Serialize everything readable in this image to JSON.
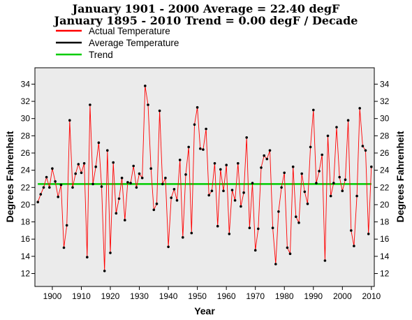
{
  "chart_data": {
    "type": "line",
    "title": "January 1901 - 2000 Average = 22.40 degF",
    "subtitle": "January 1895 - 2010 Trend = 0.00 degF / Decade",
    "xlabel": "Year",
    "ylabel": "Degrees Fahrenheit",
    "xlim": [
      1894,
      2011
    ],
    "ylim": [
      10.5,
      35.9
    ],
    "x_ticks": [
      1900,
      1910,
      1920,
      1930,
      1940,
      1950,
      1960,
      1970,
      1980,
      1990,
      2000,
      2010
    ],
    "y_ticks": [
      12,
      14,
      16,
      18,
      20,
      22,
      24,
      26,
      28,
      30,
      32,
      34
    ],
    "grid": false,
    "background": "#ebebeb",
    "legend": {
      "placement": "top-left",
      "entries": [
        {
          "label": "Actual Temperature",
          "color": "#ff0000"
        },
        {
          "label": "Average Temperature",
          "color": "#000000"
        },
        {
          "label": "Trend",
          "color": "#00cc00"
        }
      ]
    },
    "series": [
      {
        "name": "Actual Temperature",
        "color": "#ff0000",
        "marker_color": "#000000",
        "x_start": 1895,
        "x_end": 2010,
        "values": [
          20.3,
          21.2,
          22.0,
          23.2,
          22.0,
          24.2,
          22.7,
          20.9,
          22.3,
          15.0,
          17.6,
          29.8,
          22.0,
          23.6,
          24.7,
          23.7,
          24.8,
          13.9,
          31.6,
          22.4,
          24.4,
          27.2,
          22.1,
          12.3,
          26.3,
          14.4,
          24.9,
          19.0,
          20.7,
          23.1,
          18.2,
          22.6,
          22.5,
          24.5,
          22.0,
          23.6,
          23.1,
          33.8,
          31.6,
          24.2,
          19.4,
          20.1,
          30.9,
          22.4,
          23.1,
          15.1,
          20.8,
          21.8,
          20.5,
          25.2,
          16.2,
          23.5,
          26.7,
          16.7,
          29.3,
          31.3,
          26.5,
          26.4,
          28.8,
          21.1,
          21.6,
          24.8,
          17.5,
          24.1,
          21.6,
          24.6,
          16.6,
          21.7,
          20.5,
          24.8,
          19.8,
          21.4,
          27.8,
          17.3,
          22.5,
          14.7,
          17.2,
          24.3,
          25.7,
          25.3,
          26.3,
          17.3,
          13.1,
          19.2,
          22.0,
          23.7,
          15.0,
          14.3,
          24.4,
          18.6,
          17.9,
          23.6,
          21.5,
          20.1,
          26.7,
          31.0,
          22.5,
          23.9,
          25.8,
          13.5,
          28.0,
          21.0,
          22.5,
          29.0,
          23.2,
          21.6,
          22.9,
          29.8,
          17.0,
          15.2,
          21.0,
          31.2,
          26.8,
          26.3,
          16.6,
          24.4
        ]
      },
      {
        "name": "Trend",
        "color": "#00cc00",
        "values": [
          22.4,
          22.4
        ]
      }
    ]
  }
}
